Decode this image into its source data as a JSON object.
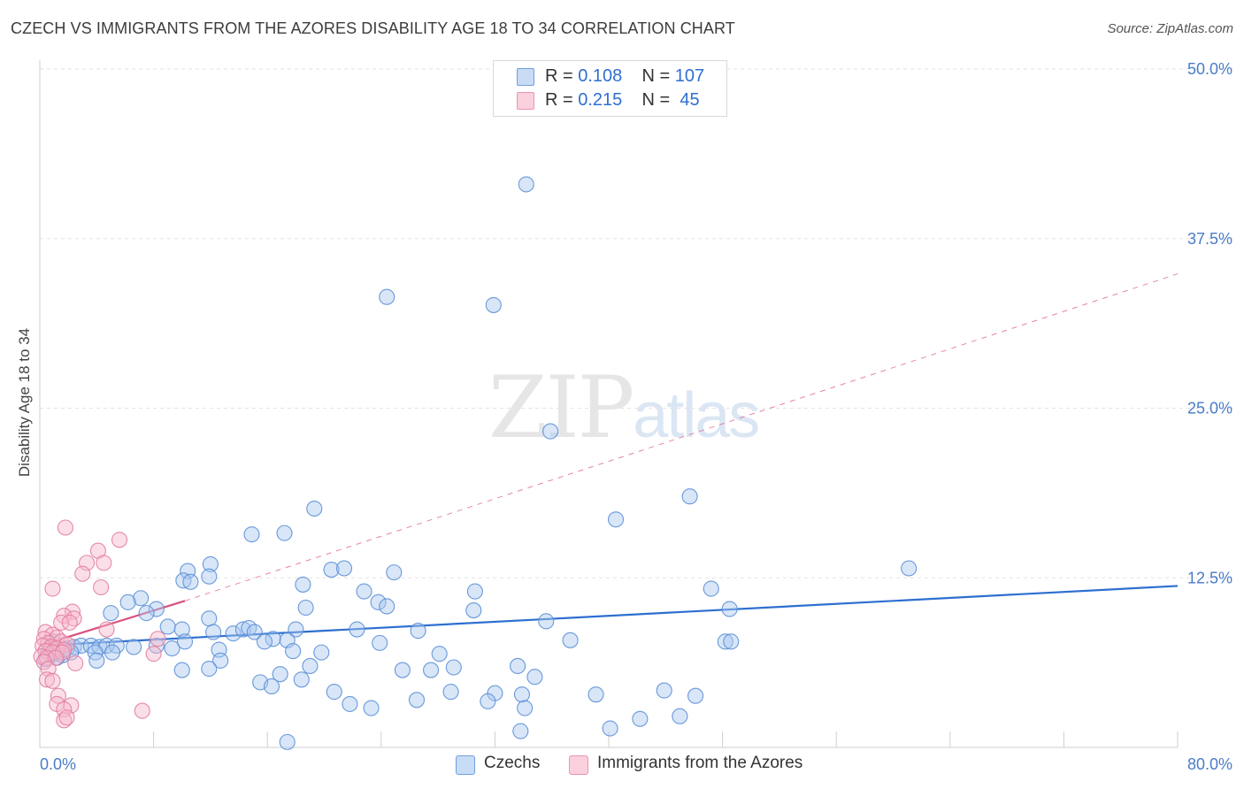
{
  "header": {
    "title": "CZECH VS IMMIGRANTS FROM THE AZORES DISABILITY AGE 18 TO 34 CORRELATION CHART",
    "source": "Source: ZipAtlas.com"
  },
  "watermark": {
    "zip": "ZIP",
    "atlas": "atlas"
  },
  "legend": {
    "rows": [
      {
        "r_label": "R =",
        "r_value": "0.108",
        "n_label": "N =",
        "n_value": "107",
        "color": "#a9c8f0"
      },
      {
        "r_label": "R =",
        "r_value": "0.215",
        "n_label": "N =",
        "n_value": " 45",
        "color": "#f6b8cb"
      }
    ]
  },
  "chart_data": {
    "type": "scatter",
    "xlabel": "",
    "ylabel": "Disability Age 18 to 34",
    "xlim": [
      0,
      80
    ],
    "ylim": [
      0,
      50
    ],
    "x_tick_labels": [
      "0.0%",
      "80.0%"
    ],
    "y_ticks": [
      12.5,
      25.0,
      37.5,
      50.0
    ],
    "y_tick_labels": [
      "12.5%",
      "25.0%",
      "37.5%",
      "50.0%"
    ],
    "grid": true,
    "legend_position": "top-center",
    "series": [
      {
        "name": "Czechs",
        "color": "#a9c8f0",
        "stroke": "#5b8fd6",
        "trend": {
          "x": [
            0,
            80
          ],
          "y": [
            7.5,
            11.9
          ],
          "color": "#2d6fd0"
        },
        "points": [
          [
            34.2,
            41.5
          ],
          [
            24.4,
            33.2
          ],
          [
            31.9,
            32.6
          ],
          [
            35.9,
            23.3
          ],
          [
            45.7,
            18.5
          ],
          [
            40.5,
            16.8
          ],
          [
            19.3,
            17.6
          ],
          [
            17.2,
            15.8
          ],
          [
            14.9,
            15.7
          ],
          [
            61.1,
            13.2
          ],
          [
            12.0,
            13.5
          ],
          [
            10.4,
            13.0
          ],
          [
            20.5,
            13.1
          ],
          [
            21.4,
            13.2
          ],
          [
            24.9,
            12.9
          ],
          [
            11.9,
            12.6
          ],
          [
            10.1,
            12.3
          ],
          [
            10.6,
            12.2
          ],
          [
            18.5,
            12.0
          ],
          [
            22.8,
            11.5
          ],
          [
            30.6,
            11.5
          ],
          [
            47.2,
            11.7
          ],
          [
            7.1,
            11.0
          ],
          [
            6.2,
            10.7
          ],
          [
            8.2,
            10.2
          ],
          [
            18.7,
            10.3
          ],
          [
            23.8,
            10.7
          ],
          [
            24.4,
            10.4
          ],
          [
            30.5,
            10.1
          ],
          [
            48.5,
            10.2
          ],
          [
            5.0,
            9.9
          ],
          [
            7.5,
            9.9
          ],
          [
            11.9,
            9.5
          ],
          [
            35.6,
            9.3
          ],
          [
            9.0,
            8.9
          ],
          [
            10.0,
            8.7
          ],
          [
            12.2,
            8.5
          ],
          [
            13.6,
            8.4
          ],
          [
            14.3,
            8.7
          ],
          [
            14.7,
            8.8
          ],
          [
            15.1,
            8.5
          ],
          [
            18.0,
            8.7
          ],
          [
            22.3,
            8.7
          ],
          [
            26.6,
            8.6
          ],
          [
            16.4,
            8.0
          ],
          [
            15.8,
            7.8
          ],
          [
            17.4,
            7.9
          ],
          [
            23.9,
            7.7
          ],
          [
            37.3,
            7.9
          ],
          [
            48.2,
            7.8
          ],
          [
            48.6,
            7.8
          ],
          [
            1.3,
            7.2
          ],
          [
            1.9,
            7.3
          ],
          [
            2.4,
            7.4
          ],
          [
            2.9,
            7.5
          ],
          [
            3.6,
            7.5
          ],
          [
            4.2,
            7.4
          ],
          [
            4.7,
            7.5
          ],
          [
            5.4,
            7.5
          ],
          [
            6.6,
            7.4
          ],
          [
            8.2,
            7.5
          ],
          [
            9.3,
            7.3
          ],
          [
            10.2,
            7.8
          ],
          [
            0.6,
            7.0
          ],
          [
            1.0,
            6.9
          ],
          [
            1.6,
            6.8
          ],
          [
            2.2,
            7.0
          ],
          [
            3.9,
            7.0
          ],
          [
            5.1,
            7.0
          ],
          [
            12.6,
            7.2
          ],
          [
            17.8,
            7.1
          ],
          [
            19.8,
            7.0
          ],
          [
            28.1,
            6.9
          ],
          [
            0.4,
            6.5
          ],
          [
            1.2,
            6.6
          ],
          [
            4.0,
            6.4
          ],
          [
            12.7,
            6.4
          ],
          [
            19.0,
            6.0
          ],
          [
            25.5,
            5.7
          ],
          [
            27.5,
            5.7
          ],
          [
            29.1,
            5.9
          ],
          [
            33.6,
            6.0
          ],
          [
            10.0,
            5.7
          ],
          [
            11.9,
            5.8
          ],
          [
            16.9,
            5.4
          ],
          [
            18.4,
            5.0
          ],
          [
            34.8,
            5.2
          ],
          [
            15.5,
            4.8
          ],
          [
            16.3,
            4.5
          ],
          [
            20.7,
            4.1
          ],
          [
            28.9,
            4.1
          ],
          [
            32.0,
            4.0
          ],
          [
            33.9,
            3.9
          ],
          [
            39.1,
            3.9
          ],
          [
            43.9,
            4.2
          ],
          [
            46.1,
            3.8
          ],
          [
            21.8,
            3.2
          ],
          [
            23.3,
            2.9
          ],
          [
            26.5,
            3.5
          ],
          [
            31.5,
            3.4
          ],
          [
            34.1,
            2.9
          ],
          [
            42.2,
            2.1
          ],
          [
            45.0,
            2.3
          ],
          [
            33.8,
            1.2
          ],
          [
            40.1,
            1.4
          ],
          [
            17.4,
            0.4
          ],
          [
            0.9,
            7.8
          ]
        ]
      },
      {
        "name": "Immigrants from the Azores",
        "color": "#f6b8cb",
        "stroke": "#e27da0",
        "trend": {
          "x": [
            0,
            10.2
          ],
          "y": [
            7.5,
            10.8
          ],
          "color": "#d9527f",
          "dashed_extension": {
            "x": [
              10.2,
              80
            ],
            "y": [
              10.8,
              34.9
            ]
          }
        },
        "points": [
          [
            1.8,
            16.2
          ],
          [
            5.6,
            15.3
          ],
          [
            4.1,
            14.5
          ],
          [
            3.3,
            13.6
          ],
          [
            4.5,
            13.6
          ],
          [
            3.0,
            12.8
          ],
          [
            0.9,
            11.7
          ],
          [
            4.3,
            11.8
          ],
          [
            2.3,
            10.0
          ],
          [
            1.7,
            9.7
          ],
          [
            2.4,
            9.5
          ],
          [
            1.5,
            9.2
          ],
          [
            2.1,
            9.2
          ],
          [
            4.7,
            8.7
          ],
          [
            8.3,
            8.0
          ],
          [
            0.4,
            8.5
          ],
          [
            0.9,
            8.3
          ],
          [
            1.2,
            8.1
          ],
          [
            0.3,
            8.0
          ],
          [
            0.6,
            7.7
          ],
          [
            1.5,
            7.8
          ],
          [
            1.9,
            7.6
          ],
          [
            0.2,
            7.5
          ],
          [
            0.8,
            7.4
          ],
          [
            1.2,
            7.3
          ],
          [
            1.7,
            7.2
          ],
          [
            0.4,
            7.1
          ],
          [
            0.9,
            7.0
          ],
          [
            1.6,
            7.0
          ],
          [
            8.0,
            6.9
          ],
          [
            0.1,
            6.7
          ],
          [
            0.5,
            6.6
          ],
          [
            1.1,
            6.6
          ],
          [
            0.3,
            6.3
          ],
          [
            2.5,
            6.2
          ],
          [
            0.6,
            5.8
          ],
          [
            0.5,
            5.0
          ],
          [
            0.9,
            4.9
          ],
          [
            1.3,
            3.8
          ],
          [
            1.2,
            3.2
          ],
          [
            2.2,
            3.1
          ],
          [
            1.7,
            2.8
          ],
          [
            7.2,
            2.7
          ],
          [
            1.7,
            2.0
          ],
          [
            1.9,
            2.2
          ]
        ]
      }
    ]
  },
  "bottom_legend": {
    "items": [
      {
        "label": "Czechs",
        "color": "#a9c8f0",
        "stroke": "#5b8fd6"
      },
      {
        "label": "Immigrants from the Azores",
        "color": "#f6b8cb",
        "stroke": "#e27da0"
      }
    ]
  }
}
